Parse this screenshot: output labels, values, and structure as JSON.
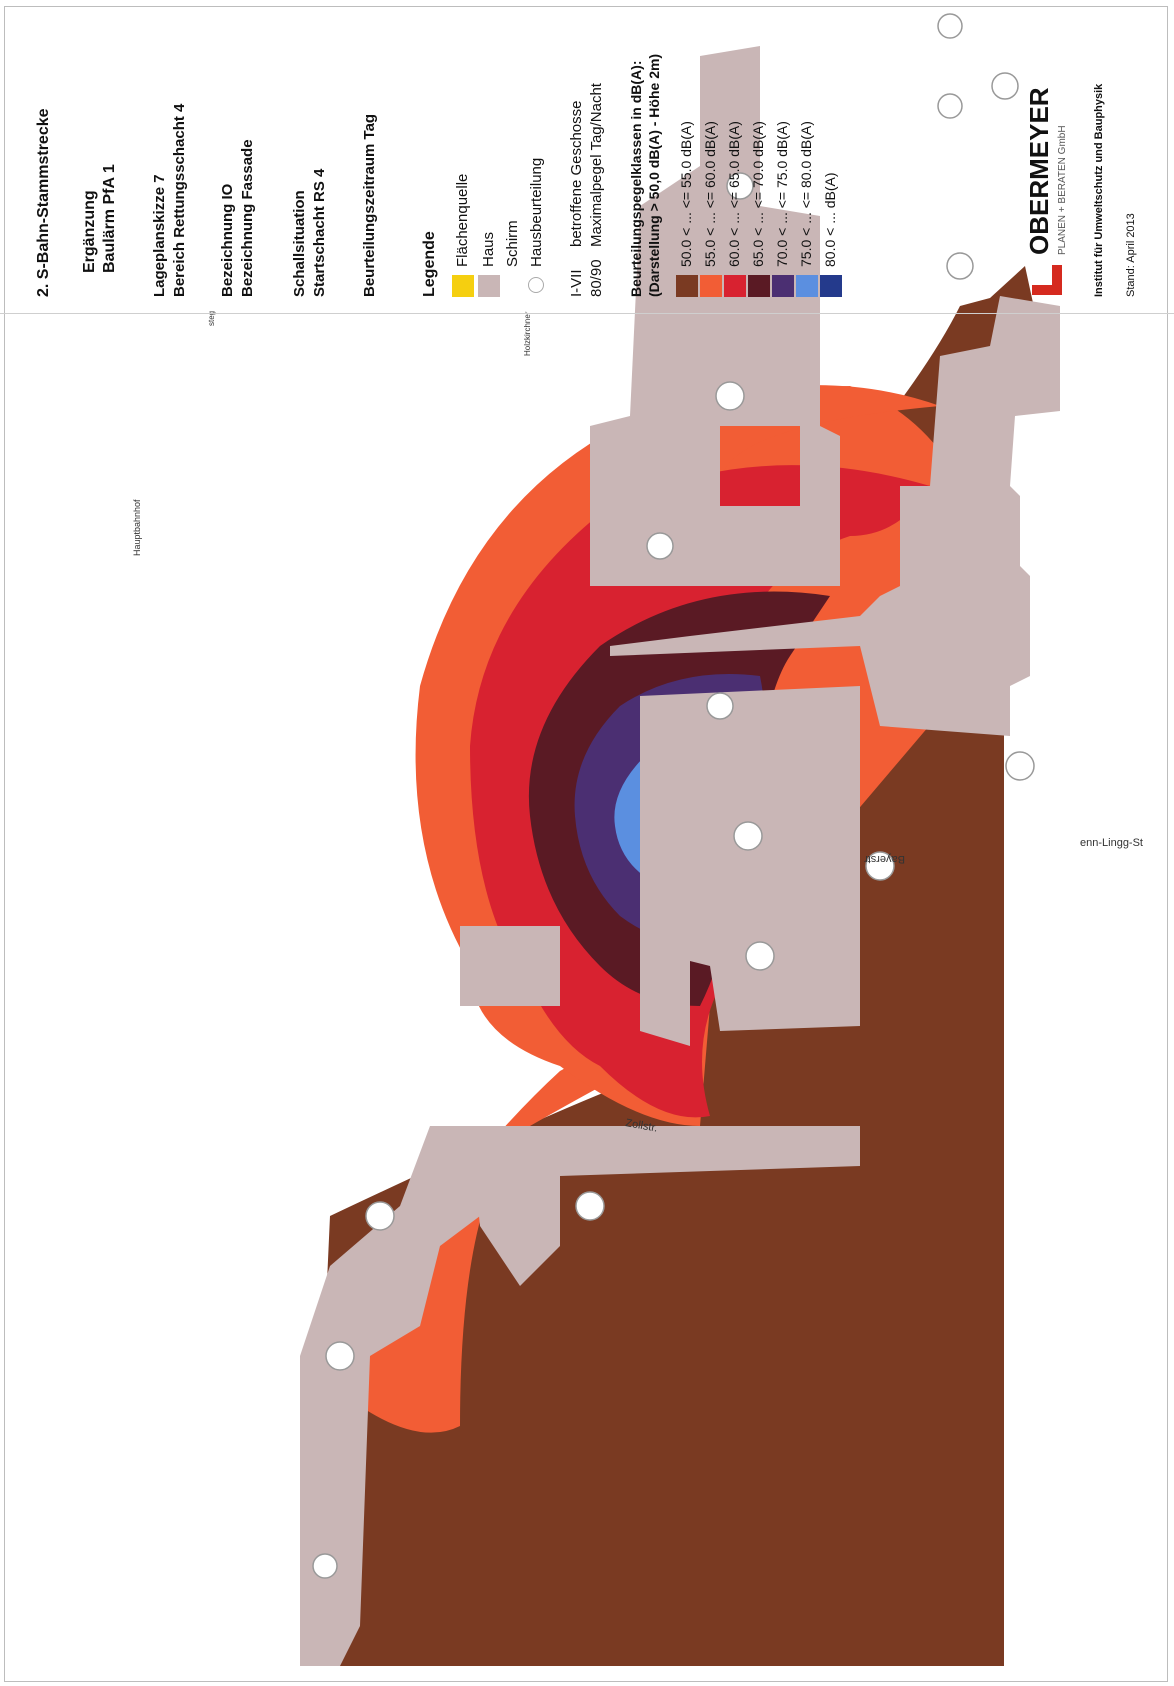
{
  "title": {
    "project": "2. S-Bahn-Stammstrecke",
    "subtitle_1": "Ergänzung",
    "subtitle_2": "Baulärm PfA 1",
    "sketch_1": "Lageplanskizze 7",
    "sketch_2": "Bereich Rettungsschacht 4",
    "desc_1": "Bezeichnung IO",
    "desc_2": "Bezeichnung Fassade",
    "situation_1": "Schallsituation",
    "situation_2": "Startschacht RS 4",
    "period": "Beurteilungszeitraum Tag"
  },
  "legend": {
    "heading": "Legende",
    "items": [
      {
        "label": "Flächenquelle",
        "color": "#f5cf10"
      },
      {
        "label": "Haus",
        "color": "#c9b6b6"
      },
      {
        "label": "Schirm"
      },
      {
        "label": "Hausbeurteilung"
      }
    ],
    "code_1": "I-VII",
    "code_1_text": "betroffene Geschosse",
    "code_2": "80/90",
    "code_2_text": "Maximalpegel Tag/Nacht"
  },
  "levels": {
    "heading_1": "Beurteilungspegelklassen in dB(A):",
    "heading_2": "(Darstellung > 50,0 dB(A) - Höhe 2m)",
    "classes": [
      {
        "label": "50.0 <  ...  <= 55.0 dB(A)",
        "color": "#7a3a22"
      },
      {
        "label": "55.0 <  ...  <= 60.0 dB(A)",
        "color": "#f25d35"
      },
      {
        "label": "60.0 <  ...  <= 65.0 dB(A)",
        "color": "#d82230"
      },
      {
        "label": "65.0 <  ...  <= 70.0 dB(A)",
        "color": "#5a1a24"
      },
      {
        "label": "70.0 <  ...  <= 75.0 dB(A)",
        "color": "#4b2f72"
      },
      {
        "label": "75.0 <  ...  <= 80.0 dB(A)",
        "color": "#5b8fe0"
      },
      {
        "label": "80.0 <  ...  dB(A)",
        "color": "#243a8c"
      }
    ]
  },
  "company": {
    "name": "OBERMEYER",
    "tagline": "PLANEN + BERATEN GmbH",
    "institute": "Institut für Umweltschutz und Bauphysik",
    "date": "Stand: April 2013"
  },
  "map": {
    "streets": [
      "Bayerstr",
      "Zollstr.",
      "enn-Lingg-St"
    ],
    "station": "Hauptbahnhof",
    "labels_top": [
      "Holzkirchner",
      "steg"
    ]
  },
  "colors": {
    "building": "#c9b6b6",
    "source": "#f5cf10"
  }
}
